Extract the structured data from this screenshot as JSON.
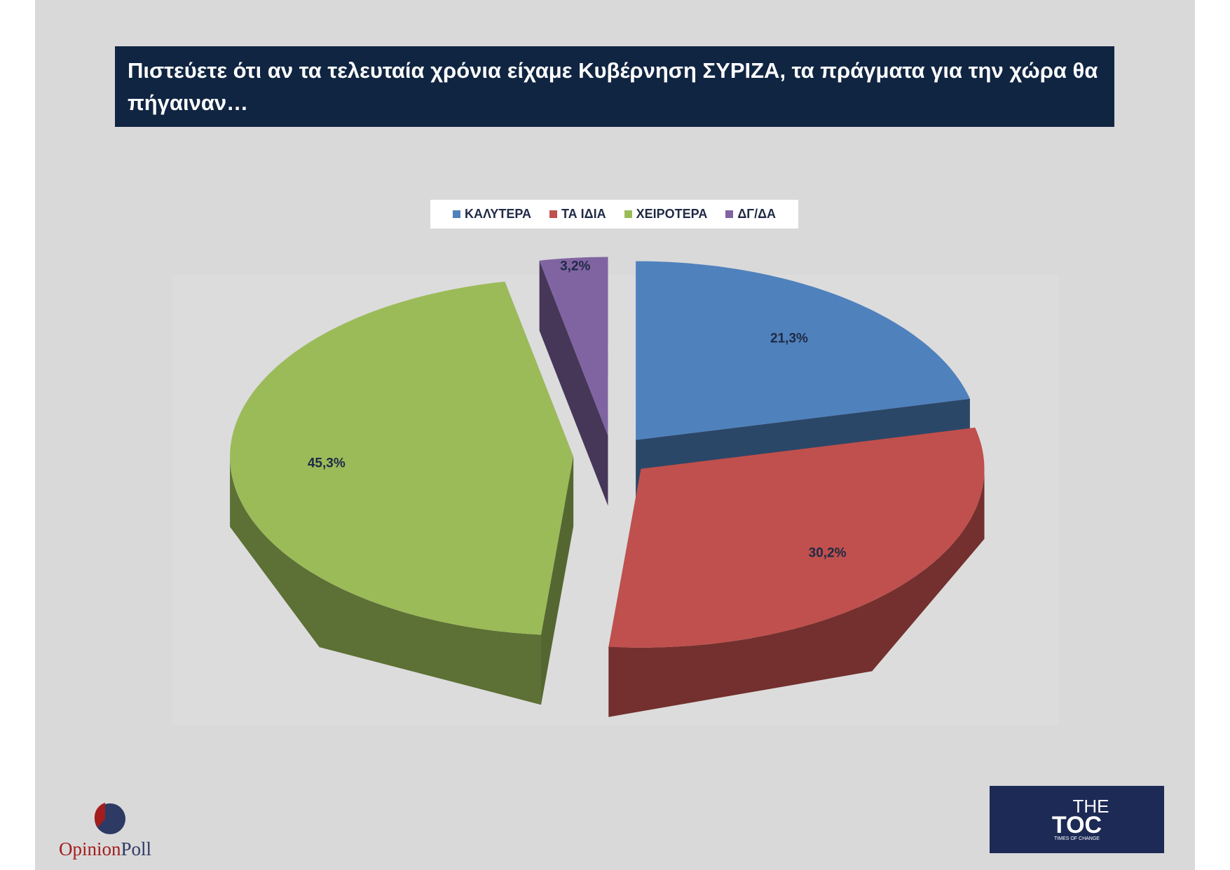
{
  "chart_data": {
    "type": "pie",
    "title": "Πιστεύετε ότι αν τα τελευταία χρόνια είχαμε Κυβέρνηση ΣΥΡΙΖΑ, τα πράγματα για την χώρα θα πήγαιναν…",
    "categories": [
      "ΚΑΛΥΤΕΡΑ",
      "ΤΑ ΙΔΙΑ",
      "ΧΕΙΡΟΤΕΡΑ",
      "ΔΓ/ΔΑ"
    ],
    "values": [
      21.3,
      30.2,
      45.3,
      3.2
    ],
    "value_labels": [
      "21,3%",
      "30,2%",
      "45,3%",
      "3,2%"
    ],
    "colors": [
      "#4f81bd",
      "#c0504d",
      "#9bbb59",
      "#8064a2"
    ],
    "legend": "top"
  },
  "logos": {
    "left": [
      "Opinion",
      "Poll"
    ],
    "right": [
      "THE",
      "TOC",
      "TIMES OF CHANGE"
    ]
  }
}
